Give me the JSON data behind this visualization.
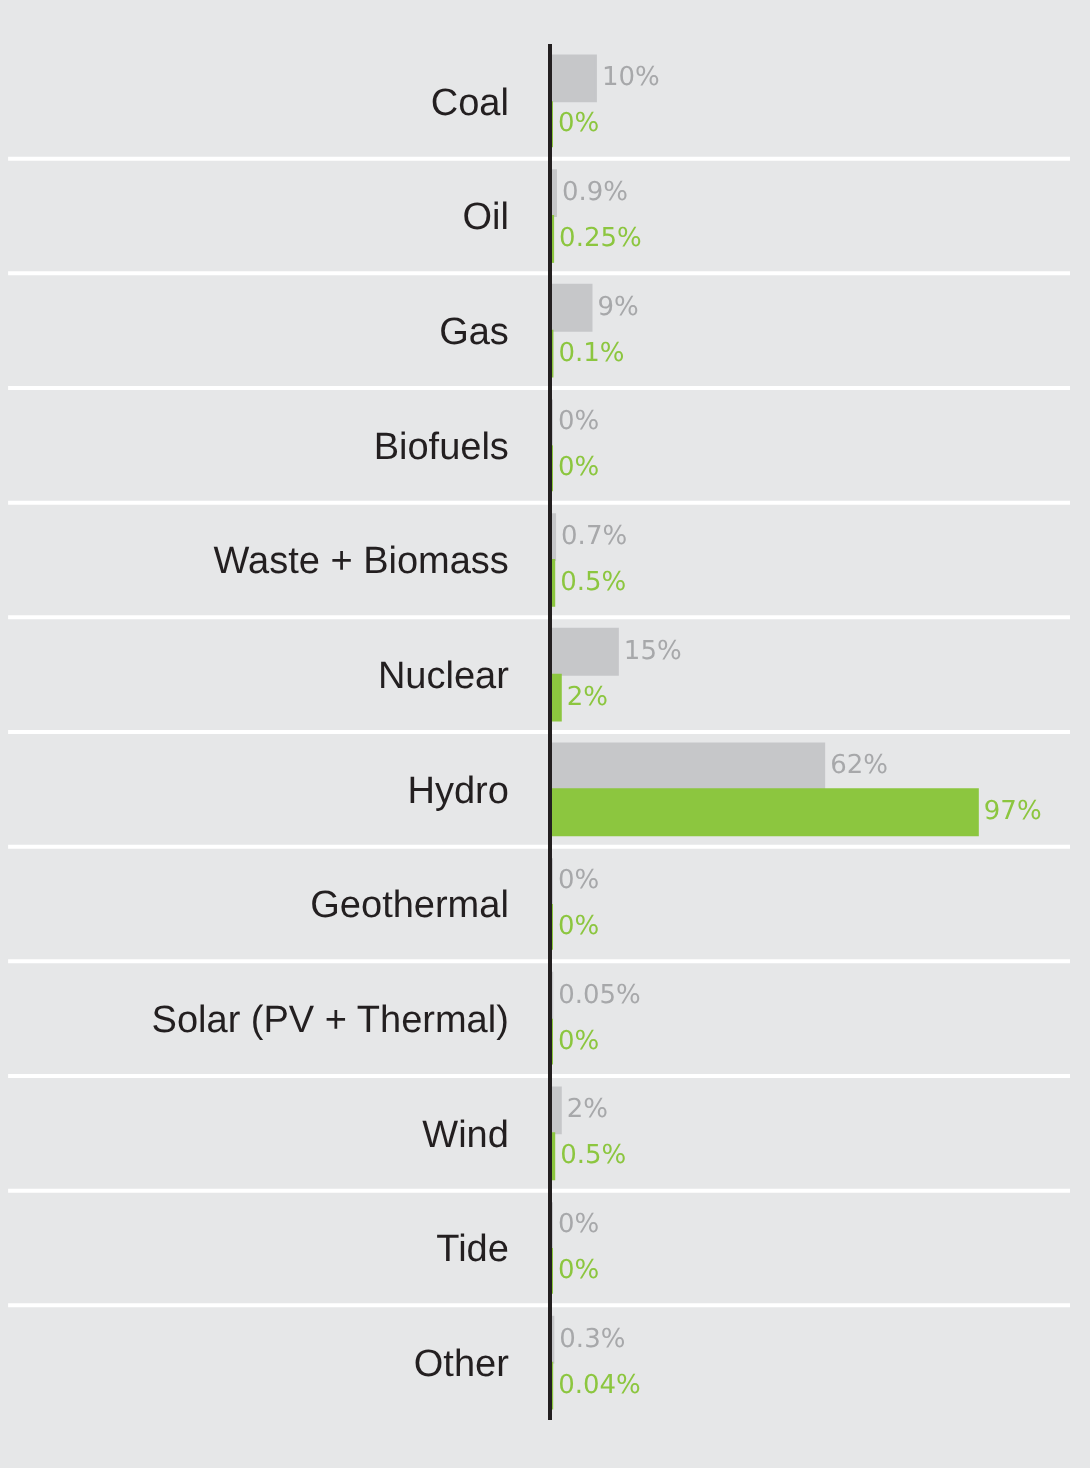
{
  "chart_data": {
    "type": "bar",
    "orientation": "horizontal",
    "categories": [
      "Coal",
      "Oil",
      "Gas",
      "Biofuels",
      "Waste + Biomass",
      "Nuclear",
      "Hydro",
      "Geothermal",
      "Solar (PV + Thermal)",
      "Wind",
      "Tide",
      "Other"
    ],
    "series": [
      {
        "color": "#c6c7c9",
        "values": [
          10,
          0.9,
          9,
          0,
          0.7,
          15,
          62,
          0,
          0.05,
          2,
          0,
          0.3
        ],
        "value_labels": [
          "10%",
          "0.9%",
          "9%",
          "0%",
          "0.7%",
          "15%",
          "62%",
          "0%",
          "0.05%",
          "2%",
          "0%",
          "0.3%"
        ]
      },
      {
        "color": "#8cc63f",
        "values": [
          0,
          0.25,
          0.1,
          0,
          0.5,
          2,
          97,
          0,
          0,
          0.5,
          0,
          0.04
        ],
        "value_labels": [
          "0%",
          "0.25%",
          "0.1%",
          "0%",
          "0.5%",
          "2%",
          "97%",
          "0%",
          "0%",
          "0.5%",
          "0%",
          "0.04%"
        ]
      }
    ],
    "xlim": [
      0,
      118
    ],
    "tick_labels": "y",
    "grid": false
  }
}
